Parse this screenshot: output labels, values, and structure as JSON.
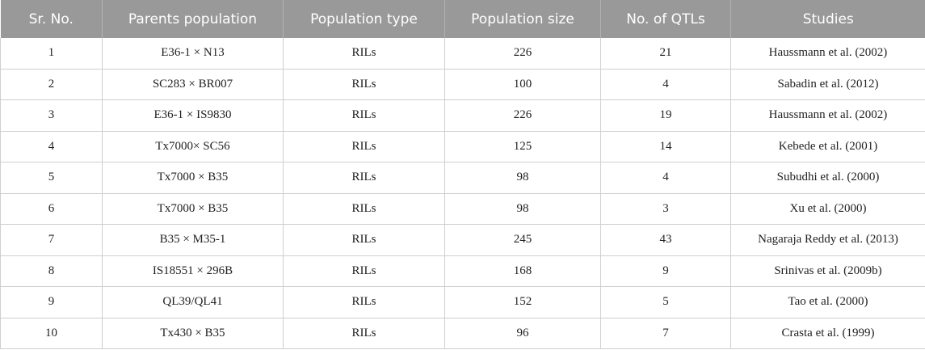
{
  "table": {
    "headers": [
      "Sr. No.",
      "Parents population",
      "Population type",
      "Population size",
      "No. of QTLs",
      "Studies"
    ],
    "rows": [
      [
        "1",
        "E36-1 × N13",
        "RILs",
        "226",
        "21",
        "Haussmann et al. (2002)"
      ],
      [
        "2",
        "SC283 × BR007",
        "RILs",
        "100",
        "4",
        "Sabadin et al. (2012)"
      ],
      [
        "3",
        "E36-1 × IS9830",
        "RILs",
        "226",
        "19",
        "Haussmann et al. (2002)"
      ],
      [
        "4",
        "Tx7000× SC56",
        "RILs",
        "125",
        "14",
        "Kebede et al. (2001)"
      ],
      [
        "5",
        "Tx7000 × B35",
        "RILs",
        "98",
        "4",
        "Subudhi et al. (2000)"
      ],
      [
        "6",
        "Tx7000 × B35",
        "RILs",
        "98",
        "3",
        "Xu et al. (2000)"
      ],
      [
        "7",
        "B35 × M35-1",
        "RILs",
        "245",
        "43",
        "Nagaraja Reddy et al. (2013)"
      ],
      [
        "8",
        "IS18551 × 296B",
        "RILs",
        "168",
        "9",
        "Srinivas et al. (2009b)"
      ],
      [
        "9",
        "QL39/QL41",
        "RILs",
        "152",
        "5",
        "Tao et al. (2000)"
      ],
      [
        "10",
        "Tx430 × B35",
        "RILs",
        "96",
        "7",
        "Crasta et al. (1999)"
      ]
    ]
  }
}
